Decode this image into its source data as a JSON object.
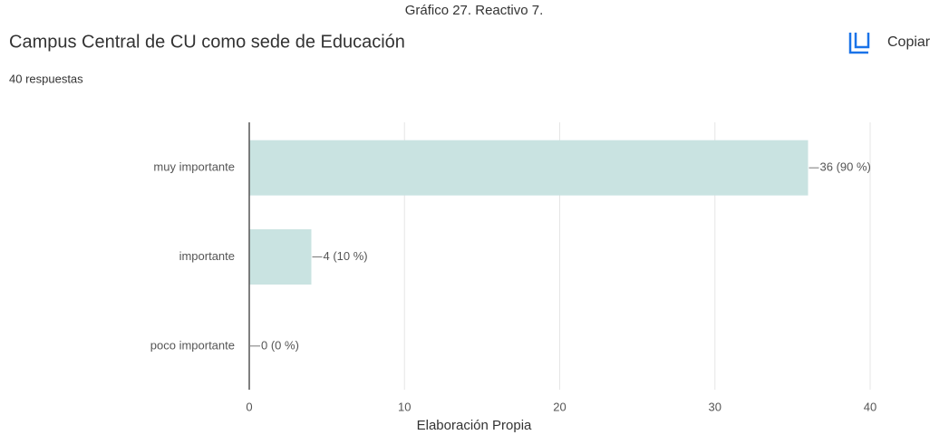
{
  "caption": "Gráfico 27. Reactivo 7.",
  "copy_button": "Copiar",
  "footer": "Elaboración Propia",
  "chart_data": {
    "type": "barh",
    "title": "Campus Central de CU como sede de Educación",
    "subtitle": "40 respuestas",
    "categories": [
      "muy importante",
      "importante",
      "poco importante"
    ],
    "values": [
      36,
      4,
      0
    ],
    "value_labels": [
      "36 (90 %)",
      "4 (10 %)",
      "0 (0 %)"
    ],
    "color": "#c9e3e1",
    "xlim": [
      0,
      40
    ],
    "xticks": [
      0,
      10,
      20,
      30,
      40
    ],
    "grid": true
  }
}
